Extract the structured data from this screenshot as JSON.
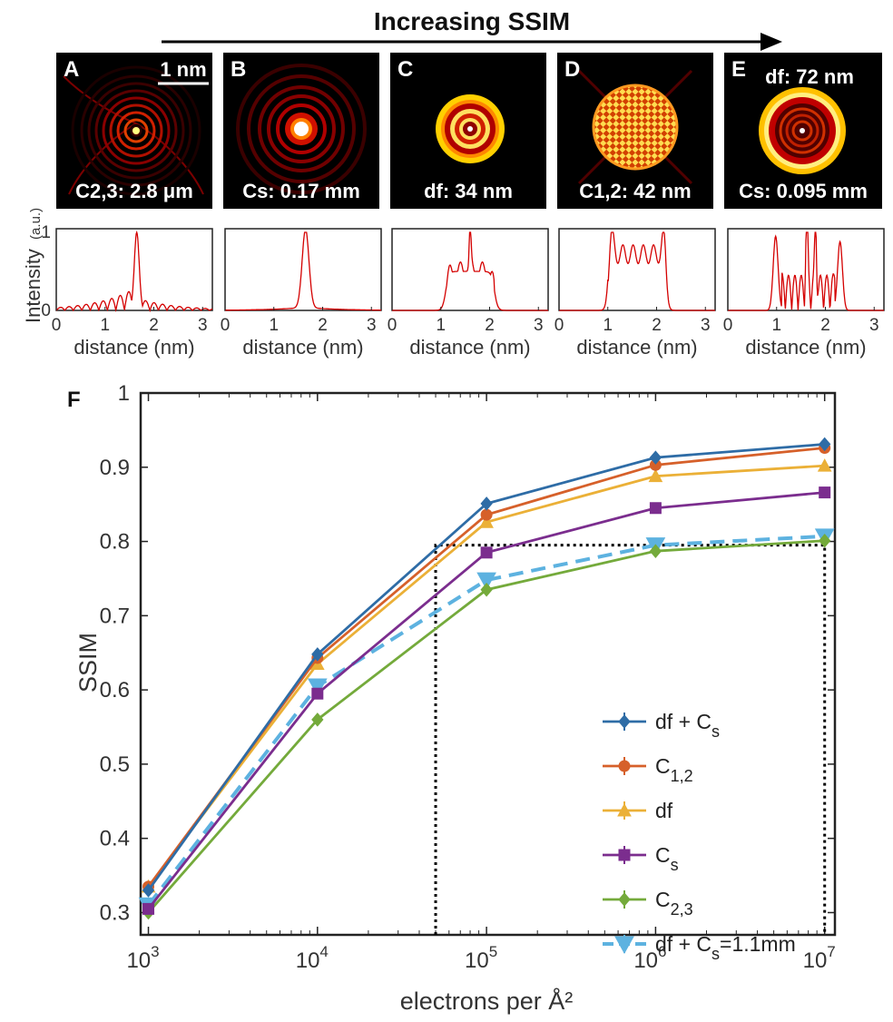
{
  "header": {
    "title": "Increasing SSIM"
  },
  "panels": [
    {
      "letter": "A",
      "label": "C2,3: 2.8 μm",
      "scale_bar": "1 nm",
      "profile": "pattern-a"
    },
    {
      "letter": "B",
      "label": "Cs: 0.17 mm",
      "profile": "pattern-b"
    },
    {
      "letter": "C",
      "label": "df: 34 nm",
      "profile": "pattern-c"
    },
    {
      "letter": "D",
      "label": "C1,2: 42 nm",
      "profile": "pattern-d"
    },
    {
      "letter": "E",
      "label_top": "df: 72 nm",
      "label": "Cs: 0.095 mm",
      "profile": "pattern-e"
    }
  ],
  "profile_axes": {
    "ylabel": "Intensity",
    "ylabel_unit": "(a.u.)",
    "xlabel": "distance (nm)",
    "xticks": [
      "0",
      "1",
      "2",
      "3"
    ],
    "yticks": [
      "0",
      "1"
    ],
    "xlim": [
      0,
      3.2
    ],
    "ylim": [
      0,
      1
    ]
  },
  "chart_data": {
    "type": "line",
    "panel_letter": "F",
    "title": "",
    "xlabel": "electrons per Å²",
    "ylabel": "SSIM",
    "xscale": "log",
    "x": [
      1000,
      10000,
      100000,
      1000000,
      10000000
    ],
    "x_tick_labels": [
      {
        "base": "10",
        "exp": "3"
      },
      {
        "base": "10",
        "exp": "4"
      },
      {
        "base": "10",
        "exp": "5"
      },
      {
        "base": "10",
        "exp": "6"
      },
      {
        "base": "10",
        "exp": "7"
      }
    ],
    "y_tick_labels": [
      "0.3",
      "0.4",
      "0.5",
      "0.6",
      "0.7",
      "0.8",
      "0.9",
      "1"
    ],
    "xlim": [
      900,
      11500000
    ],
    "ylim": [
      0.27,
      1.0
    ],
    "grid": false,
    "legend_position": "bottom-right",
    "series": [
      {
        "name": "df + Cs",
        "legend_main": "df + C",
        "legend_sub": "s",
        "legend_tail": "",
        "color": "#2e6ca6",
        "marker": "diamond",
        "dash": false,
        "values": [
          0.33,
          0.648,
          0.851,
          0.913,
          0.931
        ]
      },
      {
        "name": "C1,2",
        "legend_main": "C",
        "legend_sub": "1,2",
        "legend_tail": "",
        "color": "#d6602a",
        "marker": "circle",
        "dash": false,
        "values": [
          0.335,
          0.643,
          0.836,
          0.903,
          0.926
        ]
      },
      {
        "name": "df",
        "legend_main": "df",
        "legend_sub": "",
        "legend_tail": "",
        "color": "#ebb037",
        "marker": "triangle-up",
        "dash": false,
        "values": [
          0.335,
          0.635,
          0.826,
          0.888,
          0.902
        ]
      },
      {
        "name": "Cs",
        "legend_main": "C",
        "legend_sub": "s",
        "legend_tail": "",
        "color": "#7b2d8e",
        "marker": "square",
        "dash": false,
        "values": [
          0.305,
          0.595,
          0.785,
          0.845,
          0.866
        ]
      },
      {
        "name": "C2,3",
        "legend_main": "C",
        "legend_sub": "2,3",
        "legend_tail": "",
        "color": "#74aa3b",
        "marker": "diamond",
        "dash": false,
        "values": [
          0.3,
          0.56,
          0.735,
          0.787,
          0.801
        ]
      },
      {
        "name": "df + Cs=1.1mm",
        "legend_main": "df + C",
        "legend_sub": "s",
        "legend_tail": "=1.1mm",
        "color": "#5db2e0",
        "marker": "triangle-down",
        "dash": true,
        "values": [
          0.31,
          0.605,
          0.748,
          0.795,
          0.807
        ]
      }
    ],
    "reference_box": {
      "x_from": 50000,
      "x_to": 10000000,
      "y_level": 0.795
    }
  }
}
